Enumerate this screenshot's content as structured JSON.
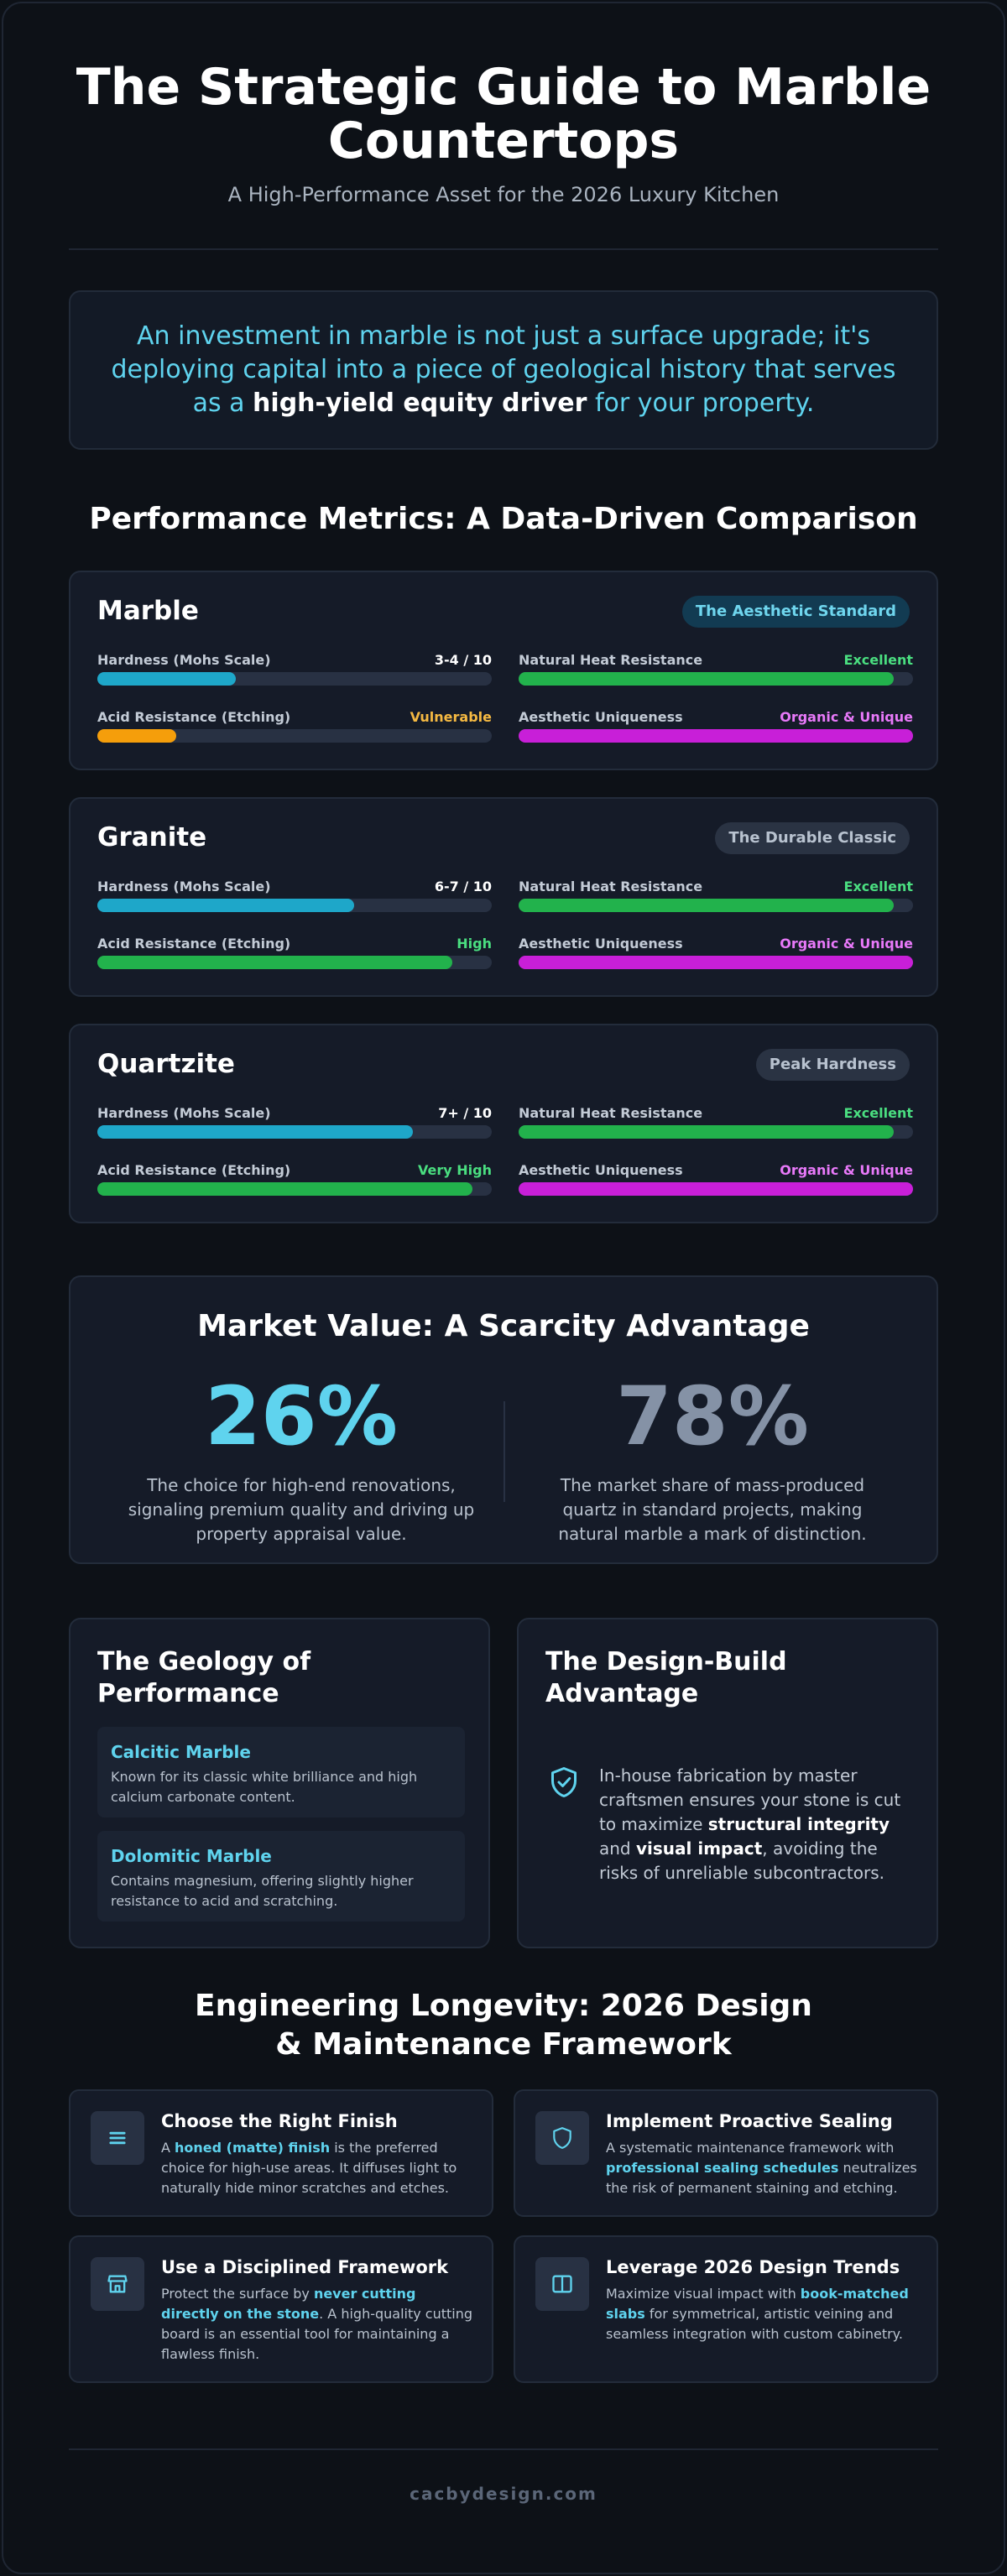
{
  "header": {
    "title": "The Strategic Guide to Marble Countertops",
    "subtitle": "A High-Performance Asset for the 2026 Luxury Kitchen"
  },
  "intro": {
    "text_before": "An investment in marble is not just a surface upgrade; it's deploying capital into a piece of geological history that serves as a ",
    "highlight": "high-yield equity driver",
    "text_after": " for your property."
  },
  "metrics_section": {
    "title": "Performance Metrics: A Data-Driven Comparison",
    "stones": [
      {
        "name": "Marble",
        "badge": "The Aesthetic Standard",
        "metrics": [
          {
            "label": "Hardness (Mohs Scale)",
            "value": "3-4 / 10",
            "level": 0.35,
            "color": "#1ea7c9",
            "value_color": "#ffffff"
          },
          {
            "label": "Natural Heat Resistance",
            "value": "Excellent",
            "level": 0.95,
            "color": "#22b24c",
            "value_color": "#4ade80"
          },
          {
            "label": "Acid Resistance (Etching)",
            "value": "Vulnerable",
            "level": 0.2,
            "color": "#f59e0b",
            "value_color": "#f5b942"
          },
          {
            "label": "Aesthetic Uniqueness",
            "value": "Organic & Unique",
            "level": 1.0,
            "color": "#c81fd8",
            "value_color": "#e879f9"
          }
        ]
      },
      {
        "name": "Granite",
        "badge": "The Durable Classic",
        "metrics": [
          {
            "label": "Hardness (Mohs Scale)",
            "value": "6-7 / 10",
            "level": 0.65,
            "color": "#1ea7c9",
            "value_color": "#ffffff"
          },
          {
            "label": "Natural Heat Resistance",
            "value": "Excellent",
            "level": 0.95,
            "color": "#22b24c",
            "value_color": "#4ade80"
          },
          {
            "label": "Acid Resistance (Etching)",
            "value": "High",
            "level": 0.9,
            "color": "#22b24c",
            "value_color": "#4ade80"
          },
          {
            "label": "Aesthetic Uniqueness",
            "value": "Organic & Unique",
            "level": 1.0,
            "color": "#c81fd8",
            "value_color": "#e879f9"
          }
        ]
      },
      {
        "name": "Quartzite",
        "badge": "Peak Hardness",
        "metrics": [
          {
            "label": "Hardness (Mohs Scale)",
            "value": "7+ / 10",
            "level": 0.8,
            "color": "#1ea7c9",
            "value_color": "#ffffff"
          },
          {
            "label": "Natural Heat Resistance",
            "value": "Excellent",
            "level": 0.95,
            "color": "#22b24c",
            "value_color": "#4ade80"
          },
          {
            "label": "Acid Resistance (Etching)",
            "value": "Very High",
            "level": 0.95,
            "color": "#22b24c",
            "value_color": "#4ade80"
          },
          {
            "label": "Aesthetic Uniqueness",
            "value": "Organic & Unique",
            "level": 1.0,
            "color": "#c81fd8",
            "value_color": "#e879f9"
          }
        ]
      }
    ]
  },
  "market": {
    "title": "Market Value: A Scarcity Advantage",
    "stat1": {
      "value": "26%",
      "color": "#5fd3ee",
      "desc": "The choice for high-end renovations, signaling premium quality and driving up property appraisal value."
    },
    "stat2": {
      "value": "78%",
      "color": "#8592a6",
      "desc": "The market share of mass-produced quartz in standard projects, making natural marble a mark of distinction."
    }
  },
  "geology": {
    "title": "The Geology of Performance",
    "items": [
      {
        "title": "Calcitic Marble",
        "desc": "Known for its classic white brilliance and high calcium carbonate content."
      },
      {
        "title": "Dolomitic Marble",
        "desc": "Contains magnesium, offering slightly higher resistance to acid and scratching."
      }
    ]
  },
  "design_build": {
    "title": "The Design-Build Advantage",
    "icon": "shield-check-icon",
    "t1": "In-house fabrication by master craftsmen ensures your stone is cut to maximize ",
    "b1": "structural integrity",
    "t2": " and ",
    "b2": "visual impact",
    "t3": ", avoiding the risks of unreliable subcontractors."
  },
  "longevity": {
    "title": "Engineering Longevity: 2026 Design & Maintenance Framework",
    "tips": [
      {
        "icon": "layers-icon",
        "title": "Choose the Right Finish",
        "t1": "A ",
        "b1": "honed (matte) finish",
        "t2": " is the preferred choice for high-use areas. It diffuses light to naturally hide minor scratches and etches."
      },
      {
        "icon": "shield-icon",
        "title": "Implement Proactive Sealing",
        "t1": "A systematic maintenance framework with ",
        "b1": "professional sealing schedules",
        "t2": " neutralizes the risk of permanent staining and etching."
      },
      {
        "icon": "storefront-icon",
        "title": "Use a Disciplined Framework",
        "t1": "Protect the surface by ",
        "b1": "never cutting directly on the stone",
        "t2": ". A high-quality cutting board is an essential tool for maintaining a flawless finish."
      },
      {
        "icon": "book-icon",
        "title": "Leverage 2026 Design Trends",
        "t1": "Maximize visual impact with ",
        "b1": "book-matched slabs",
        "t2": " for symmetrical, artistic veining and seamless integration with custom cabinetry."
      }
    ]
  },
  "footer": {
    "text": "cacbydesign.com"
  },
  "colors": {
    "accent": "#5fd3ee",
    "background": "#0d1117",
    "card": "#151b28"
  }
}
